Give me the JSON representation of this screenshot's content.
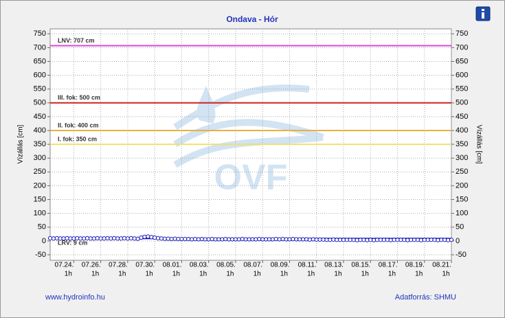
{
  "chart_data": {
    "type": "line",
    "title": "Ondava - Hór",
    "y_label": "Vízállás [cm]",
    "y2_label": "Vízállás [cm]",
    "footer_left": "www.hydroinfo.hu",
    "footer_right": "Adatforrás: SHMU",
    "watermark": "OVF",
    "color": "#1a1ab8",
    "categories": [
      null,
      null,
      null,
      null,
      null,
      null,
      null,
      "07.24.",
      null,
      null,
      null,
      null,
      null,
      null,
      null,
      "07.26.",
      null,
      null,
      null,
      null,
      null,
      null,
      null,
      "07.28.",
      null,
      null,
      null,
      null,
      null,
      null,
      null,
      "07.30.",
      null,
      null,
      null,
      null,
      null,
      null,
      null,
      "08.01.",
      null,
      null,
      null,
      null,
      null,
      null,
      null,
      "08.03.",
      null,
      null,
      null,
      null,
      null,
      null,
      null,
      "08.05.",
      null,
      null,
      null,
      null,
      null,
      null,
      null,
      "08.07.",
      null,
      null,
      null,
      null,
      null,
      null,
      null,
      "08.09.",
      null,
      null,
      null,
      null,
      null,
      null,
      null,
      "08.11.",
      null,
      null,
      null,
      null,
      null,
      null,
      null,
      "08.13.",
      null,
      null,
      null,
      null,
      null,
      null,
      null,
      "08.15.",
      null,
      null,
      null,
      null,
      null,
      null,
      null,
      "08.17.",
      null,
      null,
      null,
      null,
      null,
      null,
      null,
      "08.19.",
      null,
      null,
      null,
      null,
      null,
      null,
      null,
      "08.21."
    ],
    "category_hours": [
      null,
      null,
      null,
      null,
      null,
      null,
      null,
      "1h",
      null,
      null,
      null,
      null,
      null,
      null,
      null,
      "1h",
      null,
      null,
      null,
      null,
      null,
      null,
      null,
      "1h",
      null,
      null,
      null,
      null,
      null,
      null,
      null,
      "1h",
      null,
      null,
      null,
      null,
      null,
      null,
      null,
      "1h",
      null,
      null,
      null,
      null,
      null,
      null,
      null,
      "1h",
      null,
      null,
      null,
      null,
      null,
      null,
      null,
      "1h",
      null,
      null,
      null,
      null,
      null,
      null,
      null,
      "1h",
      null,
      null,
      null,
      null,
      null,
      null,
      null,
      "1h",
      null,
      null,
      null,
      null,
      null,
      null,
      null,
      "1h",
      null,
      null,
      null,
      null,
      null,
      null,
      null,
      "1h",
      null,
      null,
      null,
      null,
      null,
      null,
      null,
      "1h",
      null,
      null,
      null,
      null,
      null,
      null,
      null,
      "1h",
      null,
      null,
      null,
      null,
      null,
      null,
      null,
      "1h",
      null,
      null,
      null,
      null,
      null,
      null,
      null,
      "1h"
    ],
    "values": [
      10,
      9,
      10,
      9,
      9,
      10,
      9,
      9,
      10,
      9,
      9,
      10,
      9,
      9,
      10,
      9,
      9,
      10,
      9,
      10,
      9,
      9,
      10,
      9,
      10,
      9,
      8,
      12,
      15,
      16,
      14,
      12,
      10,
      9,
      8,
      8,
      7,
      8,
      7,
      7,
      7,
      7,
      6,
      7,
      6,
      7,
      6,
      6,
      7,
      6,
      6,
      6,
      7,
      6,
      6,
      6,
      6,
      7,
      6,
      6,
      6,
      6,
      7,
      6,
      6,
      6,
      6,
      7,
      6,
      7,
      6,
      6,
      7,
      6,
      6,
      6,
      6,
      5,
      6,
      5,
      5,
      5,
      4,
      4,
      5,
      4,
      4,
      4,
      4,
      4,
      4,
      3,
      4,
      4,
      3,
      4,
      3,
      4,
      4,
      4,
      4,
      3,
      4,
      4,
      4,
      4,
      3,
      4,
      4,
      4,
      3,
      4,
      4,
      4,
      4,
      3,
      4,
      4,
      3,
      4
    ],
    "reference_lines": [
      {
        "label": "LNV: 707 cm",
        "value": 707,
        "color": "#dd44dd"
      },
      {
        "label": "III. fok: 500 cm",
        "value": 500,
        "color": "#cc2222"
      },
      {
        "label": "II. fok: 400 cm",
        "value": 400,
        "color": "#e8b040"
      },
      {
        "label": "I. fok: 350 cm",
        "value": 350,
        "color": "#eee070"
      },
      {
        "label": "LRV: 9 cm",
        "value": 9,
        "color": "#1a1ab8"
      }
    ],
    "ylim": [
      -70,
      768
    ],
    "yticks": [
      -50,
      0,
      50,
      100,
      150,
      200,
      250,
      300,
      350,
      400,
      450,
      500,
      550,
      600,
      650,
      700,
      750
    ],
    "grid": true
  }
}
